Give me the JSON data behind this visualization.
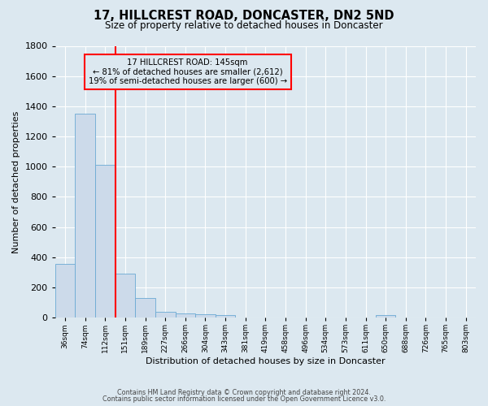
{
  "title": "17, HILLCREST ROAD, DONCASTER, DN2 5ND",
  "subtitle": "Size of property relative to detached houses in Doncaster",
  "xlabel": "Distribution of detached houses by size in Doncaster",
  "ylabel": "Number of detached properties",
  "bin_labels": [
    "36sqm",
    "74sqm",
    "112sqm",
    "151sqm",
    "189sqm",
    "227sqm",
    "266sqm",
    "304sqm",
    "343sqm",
    "381sqm",
    "419sqm",
    "458sqm",
    "496sqm",
    "534sqm",
    "573sqm",
    "611sqm",
    "650sqm",
    "688sqm",
    "726sqm",
    "765sqm",
    "803sqm"
  ],
  "bar_values": [
    355,
    1350,
    1010,
    290,
    130,
    40,
    30,
    20,
    15,
    0,
    0,
    0,
    0,
    0,
    0,
    0,
    15,
    0,
    0,
    0,
    0
  ],
  "bar_color": "#ccdaea",
  "bar_edgecolor": "#6aaad4",
  "vline_color": "red",
  "vline_index": 3,
  "annotation_title": "17 HILLCREST ROAD: 145sqm",
  "annotation_line1": "← 81% of detached houses are smaller (2,612)",
  "annotation_line2": "19% of semi-detached houses are larger (600) →",
  "annotation_box_edgecolor": "red",
  "ylim": [
    0,
    1800
  ],
  "yticks": [
    0,
    200,
    400,
    600,
    800,
    1000,
    1200,
    1400,
    1600,
    1800
  ],
  "background_color": "#dce8f0",
  "grid_color": "white",
  "footer_line1": "Contains HM Land Registry data © Crown copyright and database right 2024.",
  "footer_line2": "Contains public sector information licensed under the Open Government Licence v3.0."
}
